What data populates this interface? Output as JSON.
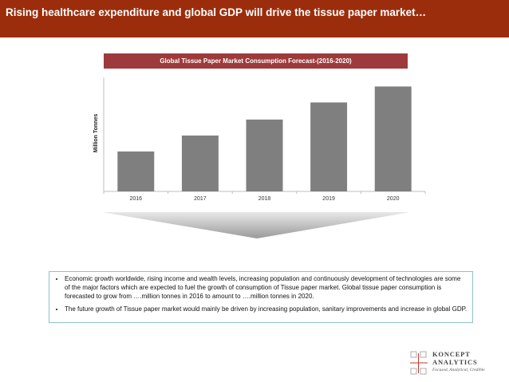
{
  "header": {
    "title": "Rising healthcare expenditure and global GDP will drive the tissue paper  market…"
  },
  "chart_data": {
    "type": "bar",
    "title": "Global Tissue Paper Market Consumption Forecast-(2016-2020)",
    "xlabel": "",
    "ylabel": "Million Tonnes",
    "categories": [
      "2016",
      "2017",
      "2018",
      "2019",
      "2020"
    ],
    "values": [
      35,
      49,
      63,
      78,
      92
    ],
    "ylim": [
      0,
      100
    ],
    "grid": false,
    "color": "#7f7f7f"
  },
  "bullets": [
    "Economic growth worldwide, rising income and wealth levels, increasing population and continuously development of technologies are some of the major factors which are expected to fuel the growth of consumption of Tissue paper market. Global tissue paper consumption is forecasted to grow from ….million tonnes in 2016 to amount to ….million tonnes in 2020.",
    "The future growth of Tissue paper market would mainly be driven by increasing population, sanitary improvements and increase in global GDP."
  ],
  "logo": {
    "line1": "KONCEPT",
    "line2": "ANALYTICS",
    "tagline": "Focused, Analytical, Credible",
    "accent_color": "#c0392b"
  }
}
